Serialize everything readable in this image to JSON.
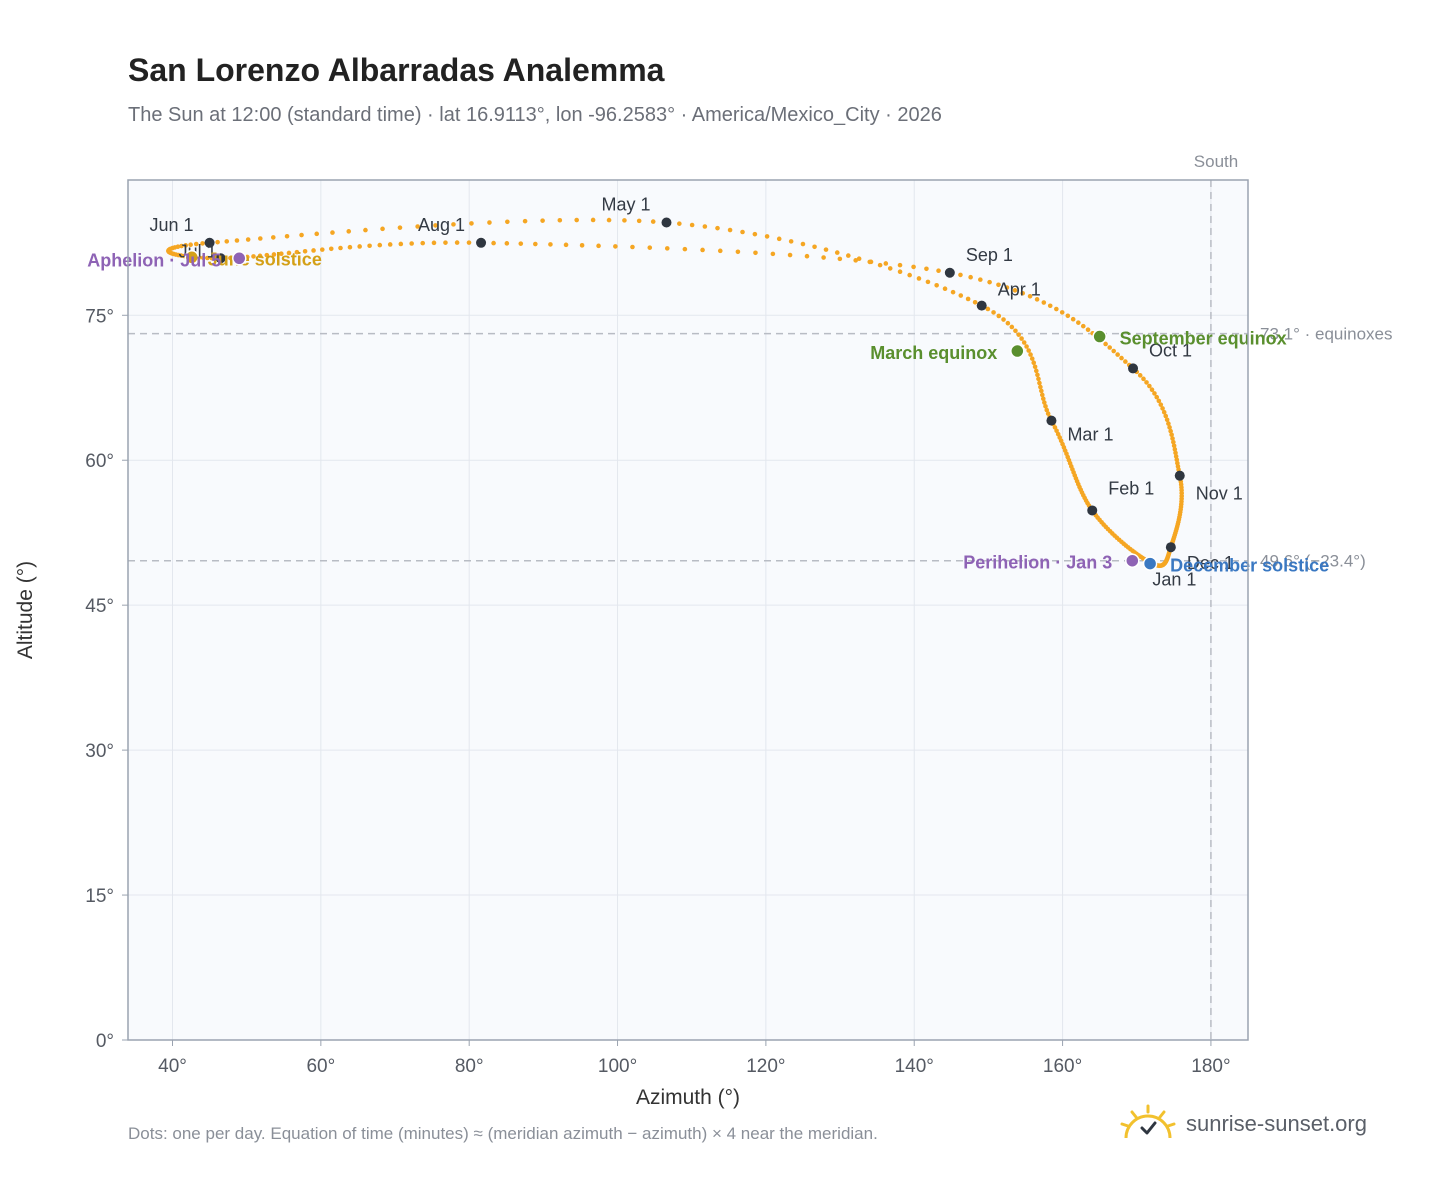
{
  "title": "San Lorenzo Albarradas Analemma",
  "subtitle": "The Sun at 12:00 (standard time) · lat 16.9113°, lon -96.2583° · America/Mexico_City · 2026",
  "footnote": "Dots: one per day. Equation of time (minutes) ≈ (meridian azimuth − azimuth) × 4 near the meridian.",
  "brand": {
    "text": "sunrise-sunset.org",
    "icon": "sun-check-icon"
  },
  "colors": {
    "curve": "#f5a623",
    "month_marker": "#2f3640",
    "equinox": "#5a8f2e",
    "december_solstice": "#3a78c2",
    "june_solstice": "#d4a017",
    "apsis": "#8e63b5",
    "reference_line": "#b8bcc4",
    "plot_background": "#f8fafd",
    "grid": "#e3e7ee"
  },
  "chart_data": {
    "type": "scatter",
    "title": "San Lorenzo Albarradas Analemma",
    "xlabel": "Azimuth (°)",
    "ylabel": "Altitude (°)",
    "xlim": [
      34,
      185
    ],
    "ylim": [
      0,
      89
    ],
    "x_ticks": [
      "40°",
      "60°",
      "80°",
      "100°",
      "120°",
      "140°",
      "160°",
      "180°"
    ],
    "y_ticks": [
      "0°",
      "15°",
      "30°",
      "45°",
      "60°",
      "75°"
    ],
    "x_tick_values": [
      40,
      60,
      80,
      100,
      120,
      140,
      160,
      180
    ],
    "y_tick_values": [
      0,
      15,
      30,
      45,
      60,
      75
    ],
    "grid": true,
    "south_label": "South",
    "south_azimuth": 180,
    "reference_lines": [
      {
        "altitude": 73.1,
        "label": "73.1° · equinoxes"
      },
      {
        "altitude": 49.6,
        "label": "49.6° (−23.4°)"
      }
    ],
    "month_markers": [
      {
        "label": "Jan 1",
        "az": 172.1,
        "alt": 49.3
      },
      {
        "label": "Feb 1",
        "az": 164.0,
        "alt": 54.8
      },
      {
        "label": "Mar 1",
        "az": 158.5,
        "alt": 64.1
      },
      {
        "label": "Apr 1",
        "az": 149.1,
        "alt": 76.0
      },
      {
        "label": "May 1",
        "az": 106.6,
        "alt": 84.6
      },
      {
        "label": "Jun 1",
        "az": 45.0,
        "alt": 82.5
      },
      {
        "label": "Jul 1",
        "az": 46.5,
        "alt": 80.9
      },
      {
        "label": "Aug 1",
        "az": 81.6,
        "alt": 82.5
      },
      {
        "label": "Sep 1",
        "az": 144.8,
        "alt": 79.4
      },
      {
        "label": "Oct 1",
        "az": 169.5,
        "alt": 69.5
      },
      {
        "label": "Nov 1",
        "az": 175.8,
        "alt": 58.4
      },
      {
        "label": "Dec 1",
        "az": 174.6,
        "alt": 51.0
      }
    ],
    "events": [
      {
        "label": "March equinox",
        "az": 153.9,
        "alt": 71.3,
        "color_key": "equinox"
      },
      {
        "label": "September equinox",
        "az": 165.0,
        "alt": 72.8,
        "color_key": "equinox"
      },
      {
        "label": "December solstice",
        "az": 171.8,
        "alt": 49.3,
        "color_key": "december_solstice"
      },
      {
        "label": "June solstice",
        "az": 42.6,
        "alt": 81.0,
        "color_key": "june_solstice"
      },
      {
        "label": "Perihelion · Jan 3",
        "az": 169.4,
        "alt": 49.6,
        "color_key": "apsis"
      },
      {
        "label": "Aphelion · Jul 5",
        "az": 49.0,
        "alt": 80.9,
        "color_key": "apsis"
      }
    ]
  }
}
